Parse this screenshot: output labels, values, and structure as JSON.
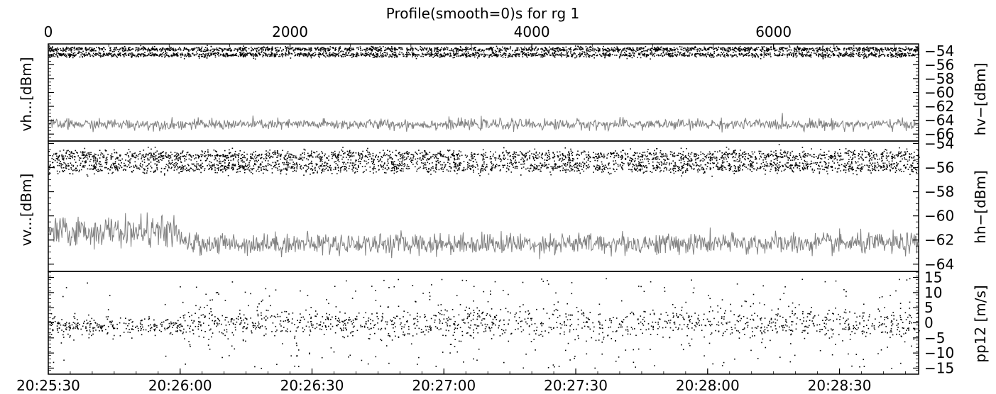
{
  "chart_data": [
    {
      "type": "line",
      "panel": "top",
      "title": "Profile(smooth=0)s for rg 1",
      "top_axis": {
        "ticks": [
          0,
          2000,
          4000,
          6000
        ],
        "tick_labels": [
          "0",
          "2000",
          "4000",
          "6000"
        ],
        "range": [
          0,
          7200
        ]
      },
      "ylabel_left": "vh...[dBm]",
      "ylabel_right": "hv−[dBm]",
      "ylim": [
        -67,
        -53
      ],
      "right_ticks": [
        -54,
        -56,
        -58,
        -60,
        -62,
        -64,
        -66
      ],
      "right_tick_labels": [
        "−54",
        "−56",
        "−58",
        "−60",
        "−62",
        "−64",
        "−66"
      ],
      "series": [
        {
          "style": "points",
          "color": "#000000",
          "mean": -53.7,
          "spread": 0.35
        },
        {
          "style": "points",
          "color": "#000000",
          "mean": -54.5,
          "spread": 0.35
        },
        {
          "style": "line",
          "color": "#808080",
          "mean": -64.6,
          "spread": 0.7
        }
      ]
    },
    {
      "type": "line",
      "panel": "middle",
      "ylabel_left": "vv...[dBm]",
      "ylabel_right": "hh−[dBm]",
      "ylim": [
        -64.6,
        -53.8
      ],
      "right_ticks": [
        -54,
        -56,
        -58,
        -60,
        -62,
        -64
      ],
      "right_tick_labels": [
        "−54",
        "−56",
        "−58",
        "−60",
        "−62",
        "−64"
      ],
      "series": [
        {
          "style": "points",
          "color": "#000000",
          "mean": -55.0,
          "spread": 0.5
        },
        {
          "style": "points",
          "color": "#000000",
          "mean": -55.9,
          "spread": 0.5
        },
        {
          "style": "line",
          "color": "#808080",
          "mean": -62.3,
          "spread": 0.8,
          "early_mean": -61.3,
          "early_end_s": 30
        }
      ]
    },
    {
      "type": "scatter",
      "panel": "bottom",
      "ylabel_right": "pp12 [m/s]",
      "ylim": [
        -17,
        17
      ],
      "right_ticks": [
        15,
        10,
        5,
        0,
        -5,
        -10,
        -15
      ],
      "right_tick_labels": [
        "15",
        "10",
        "5",
        "0",
        "−5",
        "−10",
        "−15"
      ],
      "x_axis": {
        "unit": "time",
        "range_s": [
          0,
          198
        ],
        "tick_labels": [
          "20:25:30",
          "20:26:00",
          "20:26:30",
          "20:27:00",
          "20:27:30",
          "20:28:00",
          "20:28:30"
        ],
        "tick_values_s": [
          0,
          30,
          60,
          90,
          120,
          150,
          180
        ]
      },
      "series": [
        {
          "style": "points",
          "color": "#000000",
          "mean": 0,
          "core_spread": 2.5,
          "outlier_spread": 15,
          "early_mean": -1,
          "early_end_s": 30
        }
      ]
    }
  ]
}
